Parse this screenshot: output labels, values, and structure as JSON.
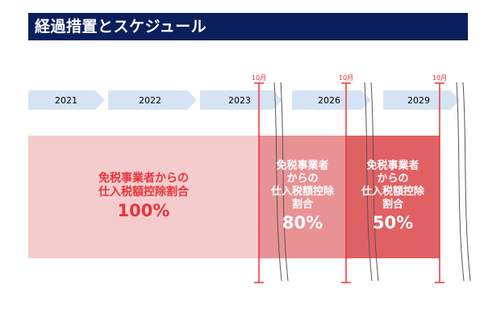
{
  "header": {
    "title": "経過措置とスケジュール"
  },
  "timeline": {
    "years": [
      "2021",
      "2022",
      "2023",
      "2026",
      "2029"
    ],
    "markers": [
      "10月",
      "10月",
      "10月"
    ]
  },
  "blocks": [
    {
      "lines": [
        "免税事業者からの",
        "仕入税額控除割合"
      ],
      "percent": "100%",
      "color": "#f5cccd"
    },
    {
      "lines": [
        "免税事業者",
        "からの",
        "仕入税額控除",
        "割合"
      ],
      "percent": "80%",
      "color": "#e89294"
    },
    {
      "lines": [
        "免税事業者",
        "からの",
        "仕入税額控除",
        "割合"
      ],
      "percent": "50%",
      "color": "#e06163"
    }
  ],
  "colors": {
    "title_bg": "#0b1f5c",
    "arrow": "#d6e3f5",
    "accent": "#e8343a"
  }
}
